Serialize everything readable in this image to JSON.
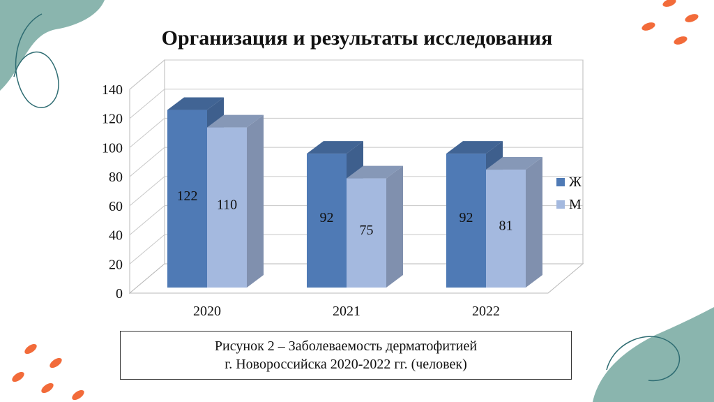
{
  "slide": {
    "title": "Организация и результаты исследования",
    "caption_line1": "Рисунок 2 – Заболеваемость дерматофитией",
    "caption_line2": "г. Новороссийска 2020-2022 гг. (человек)"
  },
  "colors": {
    "series_zh": "#4f7ab5",
    "series_m": "#a4b9df",
    "decor_teal": "#8ab5ae",
    "decor_orange": "#f26b3a"
  },
  "chart_data": {
    "type": "bar",
    "categories": [
      "2020",
      "2021",
      "2022"
    ],
    "series": [
      {
        "name": "Ж",
        "values": [
          122,
          92,
          92
        ]
      },
      {
        "name": "М",
        "values": [
          110,
          75,
          81
        ]
      }
    ],
    "yticks": [
      "0",
      "20",
      "40",
      "60",
      "80",
      "100",
      "120",
      "140"
    ],
    "ylim": [
      0,
      140
    ],
    "grid": true,
    "legend": "right",
    "style": "3d-clustered-column",
    "data_labels": true
  }
}
